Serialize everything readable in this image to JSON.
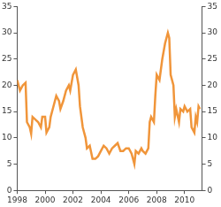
{
  "chart_data": {
    "type": "line",
    "x": [
      1998.0,
      1998.2,
      1998.4,
      1998.6,
      1998.7,
      1998.9,
      1999.0,
      1999.1,
      1999.3,
      1999.5,
      1999.7,
      1999.8,
      2000.0,
      2000.1,
      2000.3,
      2000.4,
      2000.6,
      2000.8,
      2001.0,
      2001.1,
      2001.3,
      2001.5,
      2001.7,
      2001.8,
      2002.0,
      2002.2,
      2002.4,
      2002.5,
      2002.7,
      2002.9,
      2003.0,
      2003.2,
      2003.4,
      2003.6,
      2003.8,
      2004.0,
      2004.2,
      2004.4,
      2004.6,
      2004.8,
      2005.0,
      2005.2,
      2005.4,
      2005.6,
      2005.8,
      2006.0,
      2006.2,
      2006.4,
      2006.5,
      2006.7,
      2006.9,
      2007.0,
      2007.2,
      2007.4,
      2007.5,
      2007.6,
      2007.8,
      2007.9,
      2008.0,
      2008.2,
      2008.4,
      2008.6,
      2008.8,
      2008.9,
      2009.0,
      2009.2,
      2009.3,
      2009.4,
      2009.6,
      2009.7,
      2009.9,
      2010.0,
      2010.2,
      2010.4,
      2010.5,
      2010.7,
      2010.8,
      2010.9,
      2011.0,
      2011.1
    ],
    "values": [
      21,
      19,
      20,
      20.5,
      13,
      12,
      10.8,
      14,
      13.5,
      13,
      12,
      14,
      14,
      11,
      12,
      14,
      16,
      18,
      17,
      15.5,
      17,
      19,
      20,
      19,
      22,
      23,
      20,
      16,
      12,
      10,
      8,
      8.5,
      6,
      6,
      6.5,
      7.5,
      8.5,
      8,
      7,
      8,
      8.5,
      9,
      7.5,
      7.5,
      8,
      8,
      7,
      5,
      7.5,
      7,
      8,
      7.5,
      7,
      8,
      13,
      14,
      13,
      18,
      22,
      21,
      25,
      28,
      30,
      29,
      22,
      20,
      14,
      15.5,
      13,
      15.5,
      15,
      16,
      15,
      15.5,
      12,
      11,
      14,
      13,
      16,
      15.5
    ],
    "color": "#f0953a",
    "xlim": [
      1998,
      2011.25
    ],
    "xticks": [
      1998,
      2000,
      2002,
      2004,
      2006,
      2008,
      2010
    ],
    "ylim": [
      0,
      35
    ],
    "yticks": [
      0,
      5,
      10,
      15,
      20,
      25,
      30,
      35
    ],
    "y2lim": [
      0,
      35
    ],
    "y2ticks": [
      0,
      5,
      10,
      15,
      20,
      25,
      30,
      35
    ],
    "grid": false
  }
}
